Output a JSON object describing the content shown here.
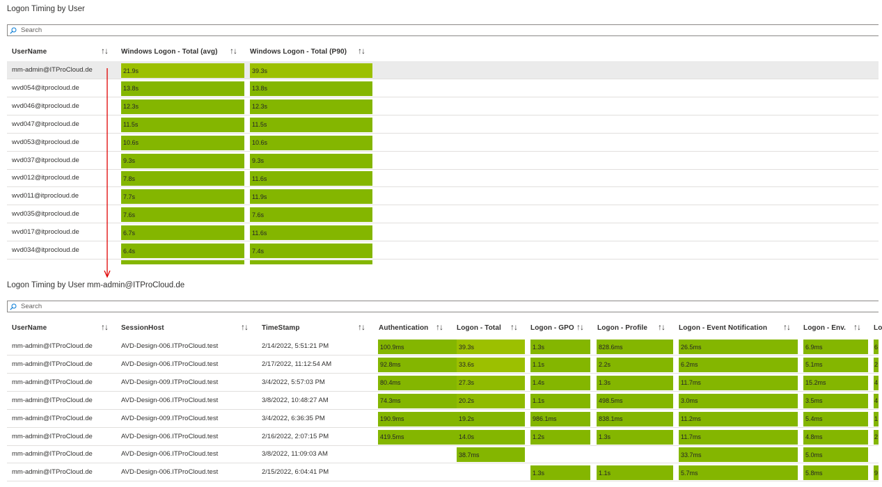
{
  "panel1": {
    "title": "Logon Timing by User",
    "search_placeholder": "Search",
    "columns": [
      "UserName",
      "Windows Logon - Total (avg)",
      "Windows Logon - Total (P90)"
    ],
    "rows": [
      {
        "user": "mm-admin@ITProCloud.de",
        "avg": "21.9s",
        "p90": "39.3s",
        "avg_color": "#9cc000",
        "p90_color": "#9cc000",
        "selected": true
      },
      {
        "user": "wvd054@itprocloud.de",
        "avg": "13.8s",
        "p90": "13.8s",
        "avg_color": "#84b600",
        "p90_color": "#84b600"
      },
      {
        "user": "wvd046@itprocloud.de",
        "avg": "12.3s",
        "p90": "12.3s",
        "avg_color": "#84b600",
        "p90_color": "#84b600"
      },
      {
        "user": "wvd047@itprocloud.de",
        "avg": "11.5s",
        "p90": "11.5s",
        "avg_color": "#84b600",
        "p90_color": "#84b600"
      },
      {
        "user": "wvd053@itprocloud.de",
        "avg": "10.6s",
        "p90": "10.6s",
        "avg_color": "#84b600",
        "p90_color": "#84b600"
      },
      {
        "user": "wvd037@itprocloud.de",
        "avg": "9.3s",
        "p90": "9.3s",
        "avg_color": "#84b600",
        "p90_color": "#84b600"
      },
      {
        "user": "wvd012@itprocloud.de",
        "avg": "7.8s",
        "p90": "11.6s",
        "avg_color": "#84b600",
        "p90_color": "#84b600"
      },
      {
        "user": "wvd011@itprocloud.de",
        "avg": "7.7s",
        "p90": "11.9s",
        "avg_color": "#84b600",
        "p90_color": "#84b600"
      },
      {
        "user": "wvd035@itprocloud.de",
        "avg": "7.6s",
        "p90": "7.6s",
        "avg_color": "#84b600",
        "p90_color": "#84b600"
      },
      {
        "user": "wvd017@itprocloud.de",
        "avg": "6.7s",
        "p90": "11.6s",
        "avg_color": "#84b600",
        "p90_color": "#84b600"
      },
      {
        "user": "wvd034@itprocloud.de",
        "avg": "6.4s",
        "p90": "7.4s",
        "avg_color": "#84b600",
        "p90_color": "#84b600"
      }
    ]
  },
  "panel2": {
    "title": "Logon Timing by User mm-admin@ITProCloud.de",
    "search_placeholder": "Search",
    "columns": [
      "UserName",
      "SessionHost",
      "TimeStamp",
      "Authentication",
      "Logon - Total",
      "Logon - GPO",
      "Logon - Profile",
      "Logon - Event Notification",
      "Logon - Env.",
      "Lo"
    ],
    "rows": [
      {
        "user": "mm-admin@ITProCloud.de",
        "host": "AVD-Design-006.ITProCloud.test",
        "time": "2/14/2022, 5:51:21 PM",
        "auth": "100.9ms",
        "total": "39.3s",
        "total_color": "#9cc000",
        "gpo": "1.3s",
        "profile": "828.6ms",
        "event": "26.5ms",
        "env": "6.9ms",
        "last": "6"
      },
      {
        "user": "mm-admin@ITProCloud.de",
        "host": "AVD-Design-006.ITProCloud.test",
        "time": "2/17/2022, 11:12:54 AM",
        "auth": "92.8ms",
        "total": "33.6s",
        "total_color": "#9cc000",
        "gpo": "1.1s",
        "profile": "2.2s",
        "event": "6.2ms",
        "env": "5.1ms",
        "last": "2"
      },
      {
        "user": "mm-admin@ITProCloud.de",
        "host": "AVD-Design-009.ITProCloud.test",
        "time": "3/4/2022, 5:57:03 PM",
        "auth": "80.4ms",
        "total": "27.3s",
        "total_color": "#90bb00",
        "gpo": "1.4s",
        "profile": "1.3s",
        "event": "11.7ms",
        "env": "15.2ms",
        "last": "4"
      },
      {
        "user": "mm-admin@ITProCloud.de",
        "host": "AVD-Design-006.ITProCloud.test",
        "time": "3/8/2022, 10:48:27 AM",
        "auth": "74.3ms",
        "total": "20.2s",
        "total_color": "#90bb00",
        "gpo": "1.1s",
        "profile": "498.5ms",
        "event": "3.0ms",
        "env": "3.5ms",
        "last": "4"
      },
      {
        "user": "mm-admin@ITProCloud.de",
        "host": "AVD-Design-009.ITProCloud.test",
        "time": "3/4/2022, 6:36:35 PM",
        "auth": "190.9ms",
        "total": "19.2s",
        "total_color": "#84b600",
        "gpo": "986.1ms",
        "profile": "838.1ms",
        "event": "11.2ms",
        "env": "5.4ms",
        "last": "1"
      },
      {
        "user": "mm-admin@ITProCloud.de",
        "host": "AVD-Design-006.ITProCloud.test",
        "time": "2/16/2022, 2:07:15 PM",
        "auth": "419.5ms",
        "total": "14.0s",
        "total_color": "#84b600",
        "gpo": "1.2s",
        "profile": "1.3s",
        "event": "11.7ms",
        "env": "4.8ms",
        "last": "2"
      },
      {
        "user": "mm-admin@ITProCloud.de",
        "host": "AVD-Design-006.ITProCloud.test",
        "time": "3/8/2022, 11:09:03 AM",
        "auth": "",
        "total": "38.7ms",
        "total_color": "#84b600",
        "gpo": "",
        "profile": "",
        "event": "33.7ms",
        "env": "5.0ms",
        "last": ""
      },
      {
        "user": "mm-admin@ITProCloud.de",
        "host": "AVD-Design-006.ITProCloud.test",
        "time": "2/15/2022, 6:04:41 PM",
        "auth": "",
        "total": "",
        "total_color": "#84b600",
        "gpo": "1.3s",
        "profile": "1.1s",
        "event": "5.7ms",
        "env": "5.8ms",
        "last": "9"
      }
    ]
  },
  "colors": {
    "bar_green": "#84b600",
    "bar_yellowgreen": "#9cc000",
    "arrow_red": "#e00000"
  },
  "icons": {
    "search": "search-icon",
    "sort": "sort-arrows-icon"
  }
}
